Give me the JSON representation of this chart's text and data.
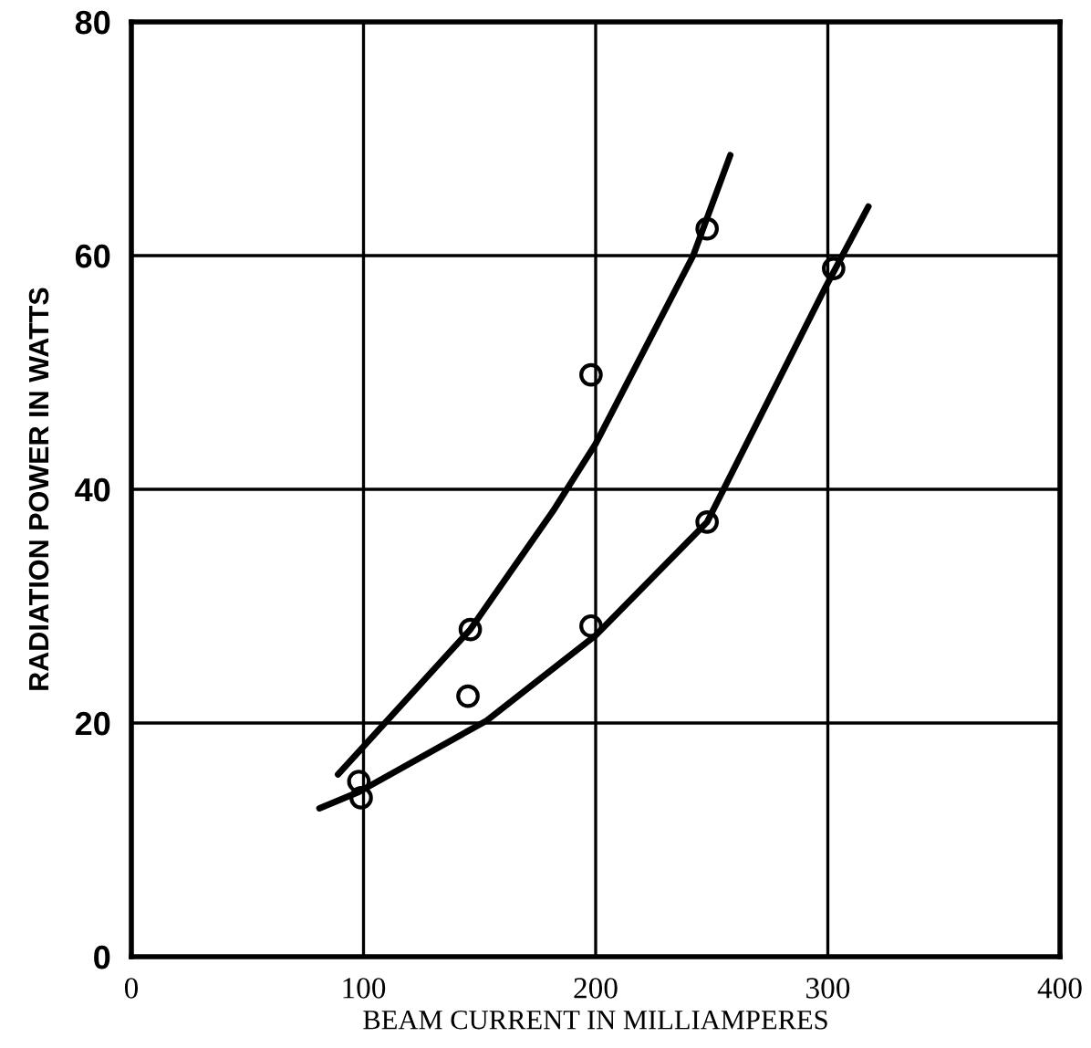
{
  "chart_data": {
    "type": "scatter",
    "xlabel": "BEAM CURRENT IN MILLIAMPERES",
    "ylabel": "RADIATION POWER IN WATTS",
    "xlim": [
      0,
      400
    ],
    "ylim": [
      0,
      80
    ],
    "xticks": [
      0,
      100,
      200,
      300,
      400
    ],
    "yticks": [
      0,
      20,
      40,
      60,
      80
    ],
    "grid": true,
    "legend": false,
    "series": [
      {
        "marker": "circle",
        "color": "#000000",
        "x": [
          98,
          99,
          146,
          145,
          198,
          198,
          248,
          248,
          302.5
        ],
        "values": [
          15,
          13.6,
          28,
          22.3,
          49.8,
          28.3,
          62.3,
          37.2,
          58.9
        ]
      },
      {
        "type": "line",
        "marker": "none",
        "color": "#000000",
        "x": [
          89,
          146,
          181.5,
          200,
          242,
          258
        ],
        "values": [
          15.6,
          28,
          38.1,
          43.9,
          60,
          68.6
        ]
      },
      {
        "type": "line",
        "marker": "none",
        "color": "#000000",
        "x": [
          81,
          98,
          153,
          200,
          248,
          299,
          317.5
        ],
        "values": [
          12.7,
          14.1,
          20.2,
          27.5,
          37.2,
          57.3,
          64.2
        ]
      }
    ]
  }
}
